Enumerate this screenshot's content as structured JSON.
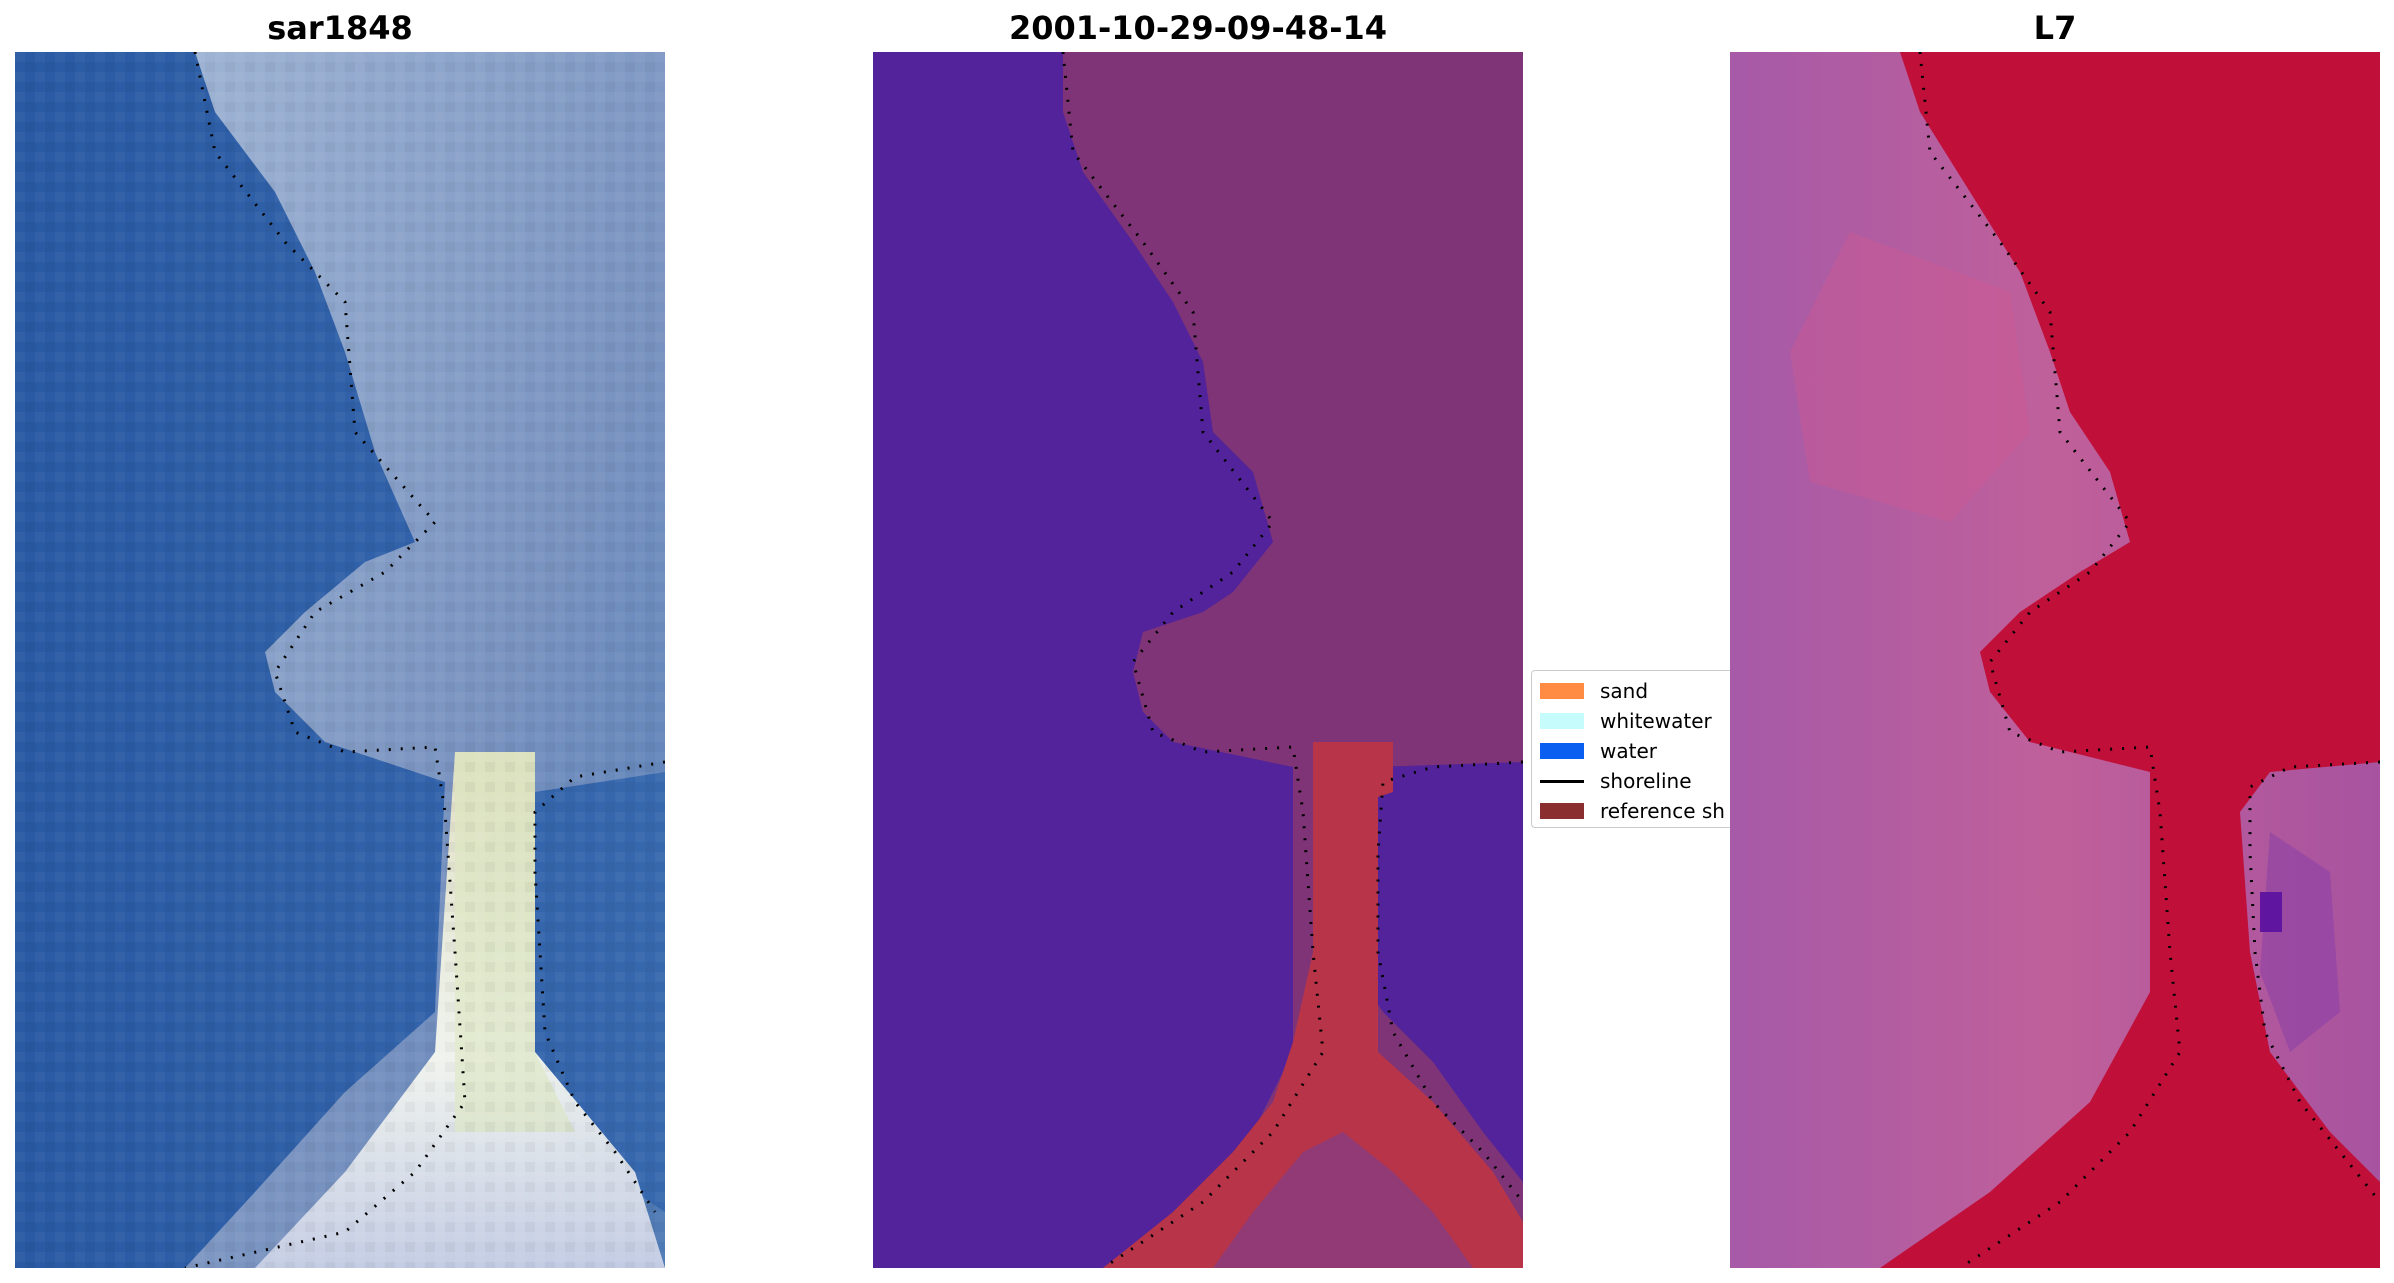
{
  "panels": [
    {
      "title": "sar1848"
    },
    {
      "title": "2001-10-29-09-48-14"
    },
    {
      "title": "L7"
    }
  ],
  "legend": {
    "items": [
      {
        "label": "sand",
        "color": "#ff8c42",
        "kind": "patch"
      },
      {
        "label": "whitewater",
        "color": "#c6fcfc",
        "kind": "patch"
      },
      {
        "label": "water",
        "color": "#0a5ff0",
        "kind": "patch"
      },
      {
        "label": "shoreline",
        "color": "#000000",
        "kind": "line"
      },
      {
        "label": "reference sh",
        "color": "#8b2e30",
        "kind": "patch"
      }
    ]
  },
  "colors": {
    "water_class": "#52239a",
    "land_class": "#7f3477",
    "spit_class": "#b83448",
    "rgb_water": "#2f5fa5",
    "rgb_land": "#8fa3c8",
    "rgb_spit": "#e8e6c8",
    "l7_land": "#c0103a",
    "l7_water": "#a85aa8"
  }
}
